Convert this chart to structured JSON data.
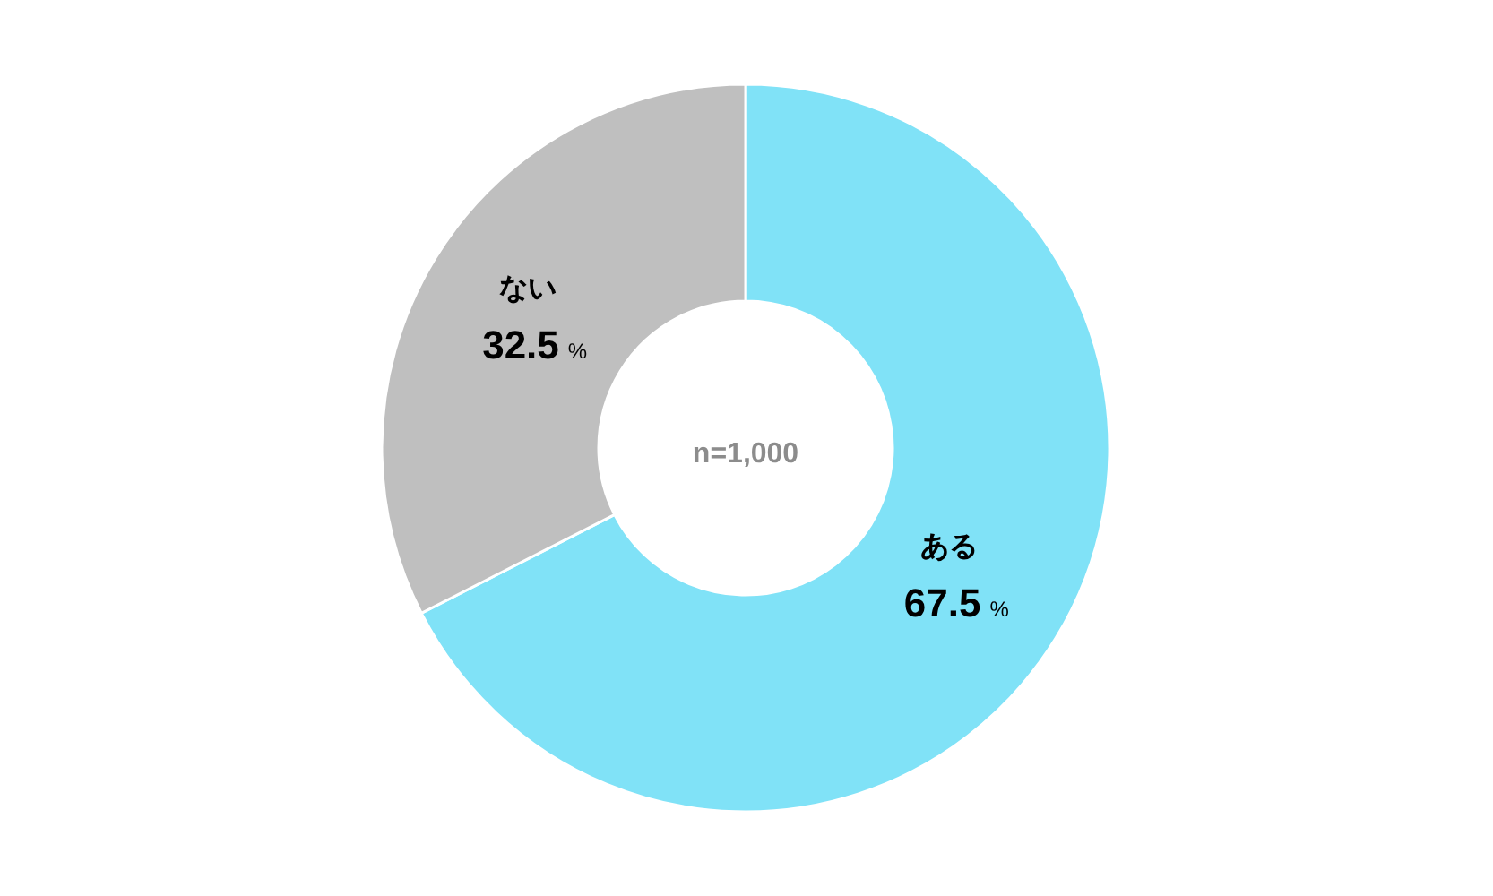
{
  "chart_data": {
    "type": "donut",
    "categories": [
      "ある",
      "ない"
    ],
    "values": [
      67.5,
      32.5
    ],
    "colors": [
      "#80e2f7",
      "#bfbfbf"
    ],
    "value_labels": [
      "67.5%",
      "32.5%"
    ],
    "annotations": [
      "n=1,000"
    ],
    "legend": false
  }
}
